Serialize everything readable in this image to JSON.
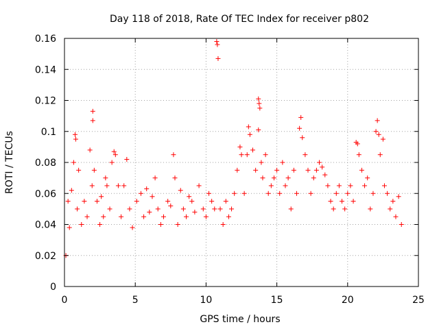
{
  "chart_data": {
    "type": "scatter",
    "title": "Day 118 of 2018, Rate Of TEC Index for receiver p802",
    "xlabel": "GPS time / hours",
    "ylabel": "ROTI / TECUs",
    "xlim": [
      0,
      25
    ],
    "ylim": [
      0,
      0.16
    ],
    "xticks": [
      "0",
      "5",
      "10",
      "15",
      "20",
      "25"
    ],
    "yticks": [
      "0",
      "0.02",
      "0.04",
      "0.06",
      "0.08",
      "0.1",
      "0.12",
      "0.14",
      "0.16"
    ],
    "grid": true,
    "marker": "plus",
    "color": "#ff0000",
    "series": [
      {
        "values": [
          [
            0.1,
            0.02
          ],
          [
            0.25,
            0.055
          ],
          [
            0.35,
            0.038
          ],
          [
            0.5,
            0.062
          ],
          [
            0.65,
            0.08
          ],
          [
            0.75,
            0.098
          ],
          [
            0.8,
            0.095
          ],
          [
            0.9,
            0.05
          ],
          [
            1.0,
            0.075
          ],
          [
            1.2,
            0.04
          ],
          [
            1.4,
            0.055
          ],
          [
            1.6,
            0.045
          ],
          [
            1.8,
            0.088
          ],
          [
            1.95,
            0.065
          ],
          [
            2.0,
            0.113
          ],
          [
            2.0,
            0.107
          ],
          [
            2.1,
            0.075
          ],
          [
            2.3,
            0.055
          ],
          [
            2.5,
            0.04
          ],
          [
            2.6,
            0.058
          ],
          [
            2.75,
            0.045
          ],
          [
            2.9,
            0.07
          ],
          [
            3.0,
            0.065
          ],
          [
            3.2,
            0.05
          ],
          [
            3.35,
            0.08
          ],
          [
            3.5,
            0.087
          ],
          [
            3.6,
            0.085
          ],
          [
            3.8,
            0.065
          ],
          [
            4.0,
            0.045
          ],
          [
            4.2,
            0.065
          ],
          [
            4.4,
            0.082
          ],
          [
            4.6,
            0.05
          ],
          [
            4.8,
            0.038
          ],
          [
            5.1,
            0.055
          ],
          [
            5.4,
            0.06
          ],
          [
            5.6,
            0.045
          ],
          [
            5.8,
            0.063
          ],
          [
            6.0,
            0.048
          ],
          [
            6.2,
            0.058
          ],
          [
            6.4,
            0.07
          ],
          [
            6.6,
            0.05
          ],
          [
            6.8,
            0.04
          ],
          [
            7.0,
            0.045
          ],
          [
            7.3,
            0.055
          ],
          [
            7.5,
            0.052
          ],
          [
            7.7,
            0.085
          ],
          [
            7.8,
            0.07
          ],
          [
            8.0,
            0.04
          ],
          [
            8.2,
            0.062
          ],
          [
            8.4,
            0.05
          ],
          [
            8.6,
            0.045
          ],
          [
            8.8,
            0.058
          ],
          [
            9.0,
            0.055
          ],
          [
            9.2,
            0.048
          ],
          [
            9.5,
            0.065
          ],
          [
            9.8,
            0.05
          ],
          [
            10.0,
            0.045
          ],
          [
            10.2,
            0.06
          ],
          [
            10.4,
            0.055
          ],
          [
            10.6,
            0.05
          ],
          [
            10.75,
            0.158
          ],
          [
            10.8,
            0.156
          ],
          [
            10.85,
            0.147
          ],
          [
            11.0,
            0.05
          ],
          [
            11.2,
            0.04
          ],
          [
            11.4,
            0.055
          ],
          [
            11.6,
            0.045
          ],
          [
            11.8,
            0.05
          ],
          [
            12.0,
            0.06
          ],
          [
            12.2,
            0.075
          ],
          [
            12.4,
            0.09
          ],
          [
            12.5,
            0.085
          ],
          [
            12.7,
            0.06
          ],
          [
            12.9,
            0.085
          ],
          [
            13.0,
            0.103
          ],
          [
            13.1,
            0.098
          ],
          [
            13.3,
            0.088
          ],
          [
            13.5,
            0.075
          ],
          [
            13.7,
            0.121
          ],
          [
            13.75,
            0.118
          ],
          [
            13.8,
            0.115
          ],
          [
            13.7,
            0.101
          ],
          [
            13.9,
            0.08
          ],
          [
            14.0,
            0.07
          ],
          [
            14.2,
            0.085
          ],
          [
            14.4,
            0.06
          ],
          [
            14.6,
            0.065
          ],
          [
            14.8,
            0.07
          ],
          [
            15.0,
            0.075
          ],
          [
            15.2,
            0.06
          ],
          [
            15.4,
            0.08
          ],
          [
            15.6,
            0.065
          ],
          [
            15.8,
            0.07
          ],
          [
            16.0,
            0.05
          ],
          [
            16.2,
            0.075
          ],
          [
            16.4,
            0.06
          ],
          [
            16.6,
            0.102
          ],
          [
            16.7,
            0.109
          ],
          [
            16.8,
            0.096
          ],
          [
            17.0,
            0.085
          ],
          [
            17.2,
            0.075
          ],
          [
            17.4,
            0.06
          ],
          [
            17.6,
            0.07
          ],
          [
            17.8,
            0.075
          ],
          [
            18.0,
            0.08
          ],
          [
            18.2,
            0.077
          ],
          [
            18.4,
            0.072
          ],
          [
            18.6,
            0.065
          ],
          [
            18.8,
            0.055
          ],
          [
            19.0,
            0.05
          ],
          [
            19.2,
            0.06
          ],
          [
            19.4,
            0.065
          ],
          [
            19.6,
            0.055
          ],
          [
            19.8,
            0.05
          ],
          [
            20.0,
            0.06
          ],
          [
            20.2,
            0.065
          ],
          [
            20.4,
            0.055
          ],
          [
            20.6,
            0.093
          ],
          [
            20.7,
            0.092
          ],
          [
            20.8,
            0.085
          ],
          [
            21.0,
            0.075
          ],
          [
            21.2,
            0.065
          ],
          [
            21.4,
            0.07
          ],
          [
            21.6,
            0.05
          ],
          [
            21.8,
            0.06
          ],
          [
            22.0,
            0.1
          ],
          [
            22.1,
            0.107
          ],
          [
            22.2,
            0.098
          ],
          [
            22.3,
            0.085
          ],
          [
            22.5,
            0.095
          ],
          [
            22.6,
            0.065
          ],
          [
            22.8,
            0.06
          ],
          [
            23.0,
            0.05
          ],
          [
            23.2,
            0.055
          ],
          [
            23.4,
            0.045
          ],
          [
            23.6,
            0.058
          ],
          [
            23.8,
            0.04
          ]
        ]
      }
    ]
  }
}
